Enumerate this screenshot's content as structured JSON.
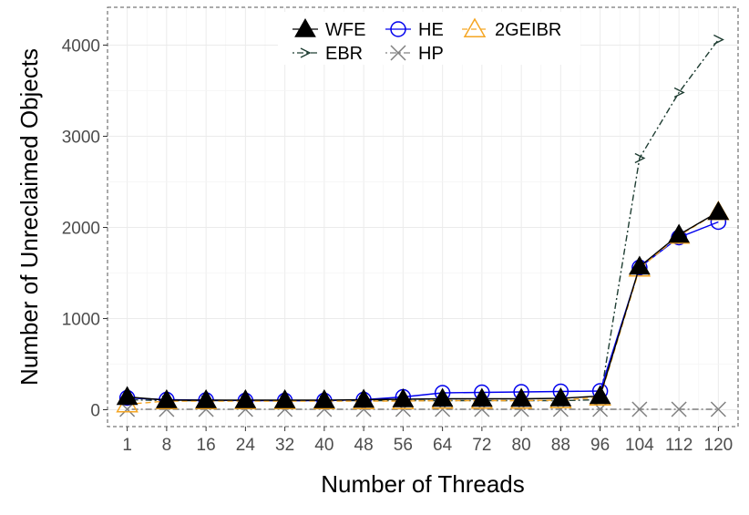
{
  "chart_data": {
    "type": "line",
    "xlabel": "Number of Threads",
    "ylabel": "Number of Unreclaimed Objects",
    "x": [
      1,
      8,
      16,
      24,
      32,
      40,
      48,
      56,
      64,
      72,
      80,
      88,
      96,
      104,
      112,
      120
    ],
    "xticks": [
      "1",
      "8",
      "16",
      "24",
      "32",
      "40",
      "48",
      "56",
      "64",
      "72",
      "80",
      "88",
      "96",
      "104",
      "112",
      "120"
    ],
    "yticks": [
      0,
      1000,
      2000,
      3000,
      4000
    ],
    "ylim": [
      -30,
      4200
    ],
    "grid": true,
    "legend_position": "top-center",
    "series": [
      {
        "name": "WFE",
        "marker": "triangle-filled",
        "line": "solid",
        "color": "#000000",
        "values": [
          140,
          105,
          105,
          105,
          105,
          105,
          110,
          115,
          120,
          120,
          120,
          125,
          150,
          1570,
          1920,
          2170
        ]
      },
      {
        "name": "EBR",
        "marker": "arrow",
        "line": "dotdash",
        "color": "#1e3d32",
        "values": [
          110,
          100,
          100,
          100,
          100,
          100,
          100,
          100,
          100,
          100,
          100,
          100,
          110,
          2760,
          3480,
          4060
        ]
      },
      {
        "name": "HE",
        "marker": "circle-open",
        "line": "solid",
        "color": "#0000ee",
        "values": [
          130,
          110,
          105,
          100,
          100,
          100,
          110,
          140,
          185,
          190,
          195,
          200,
          205,
          1560,
          1890,
          2060
        ]
      },
      {
        "name": "HP",
        "marker": "x",
        "line": "dotdash",
        "color": "#808080",
        "values": [
          5,
          5,
          5,
          5,
          5,
          5,
          5,
          5,
          5,
          5,
          5,
          5,
          5,
          5,
          5,
          5
        ]
      },
      {
        "name": "2GEIBR",
        "marker": "triangle-open",
        "line": "dashed",
        "color": "#f5a623",
        "values": [
          60,
          95,
          95,
          95,
          95,
          95,
          95,
          95,
          100,
          100,
          100,
          105,
          135,
          1550,
          1910,
          2170
        ]
      }
    ]
  }
}
